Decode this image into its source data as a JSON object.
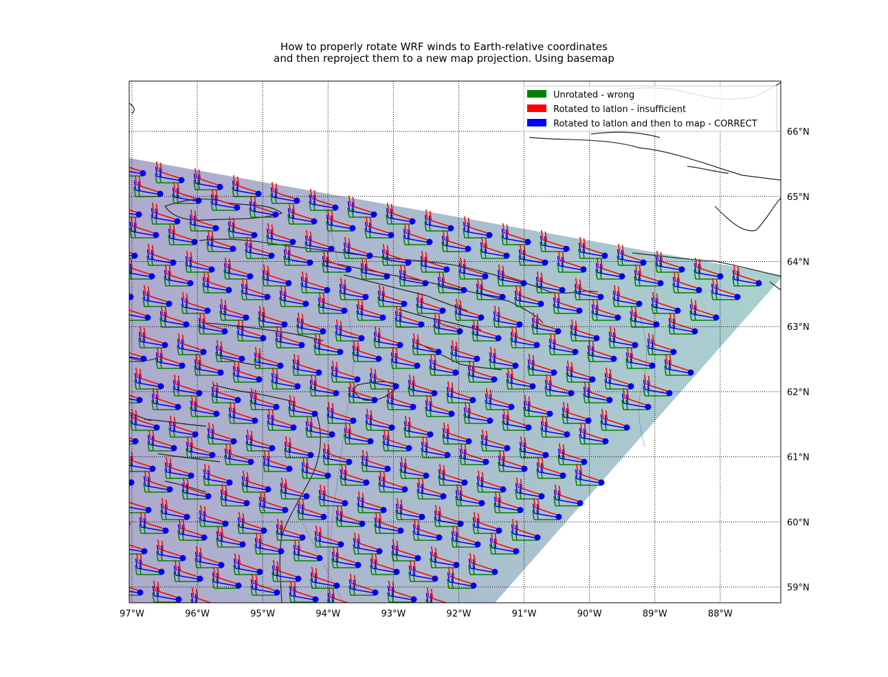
{
  "title": {
    "line1": "How to properly rotate WRF winds to Earth-relative coordinates",
    "line2": "and then reproject them to a new map projection. Using basemap"
  },
  "chart_data": {
    "type": "map-barbs",
    "lon_range": [
      -97,
      -87
    ],
    "lat_range": [
      58.8,
      66.8
    ],
    "grid": true,
    "x_ticks": [
      "97°W",
      "96°W",
      "95°W",
      "94°W",
      "93°W",
      "92°W",
      "91°W",
      "90°W",
      "89°W",
      "88°W"
    ],
    "y_ticks": [
      "66°N",
      "65°N",
      "64°N",
      "63°N",
      "62°N",
      "61°N",
      "60°N",
      "59°N"
    ],
    "legend_position": "top-right",
    "legend": [
      {
        "label": "Unrotated - wrong",
        "color": "#008000"
      },
      {
        "label": "Rotated to latlon - insufficient",
        "color": "#ff0000"
      },
      {
        "label": "Rotated to latlon and then to map - CORRECT",
        "color": "#0000ff"
      }
    ],
    "series_colors": {
      "unrotated": "#008000",
      "latlon": "#ff0000",
      "map": "#0000ff",
      "station": "#0000ee"
    },
    "domain_fill_colors": [
      "#aeaacd",
      "#a9d1cf"
    ]
  }
}
